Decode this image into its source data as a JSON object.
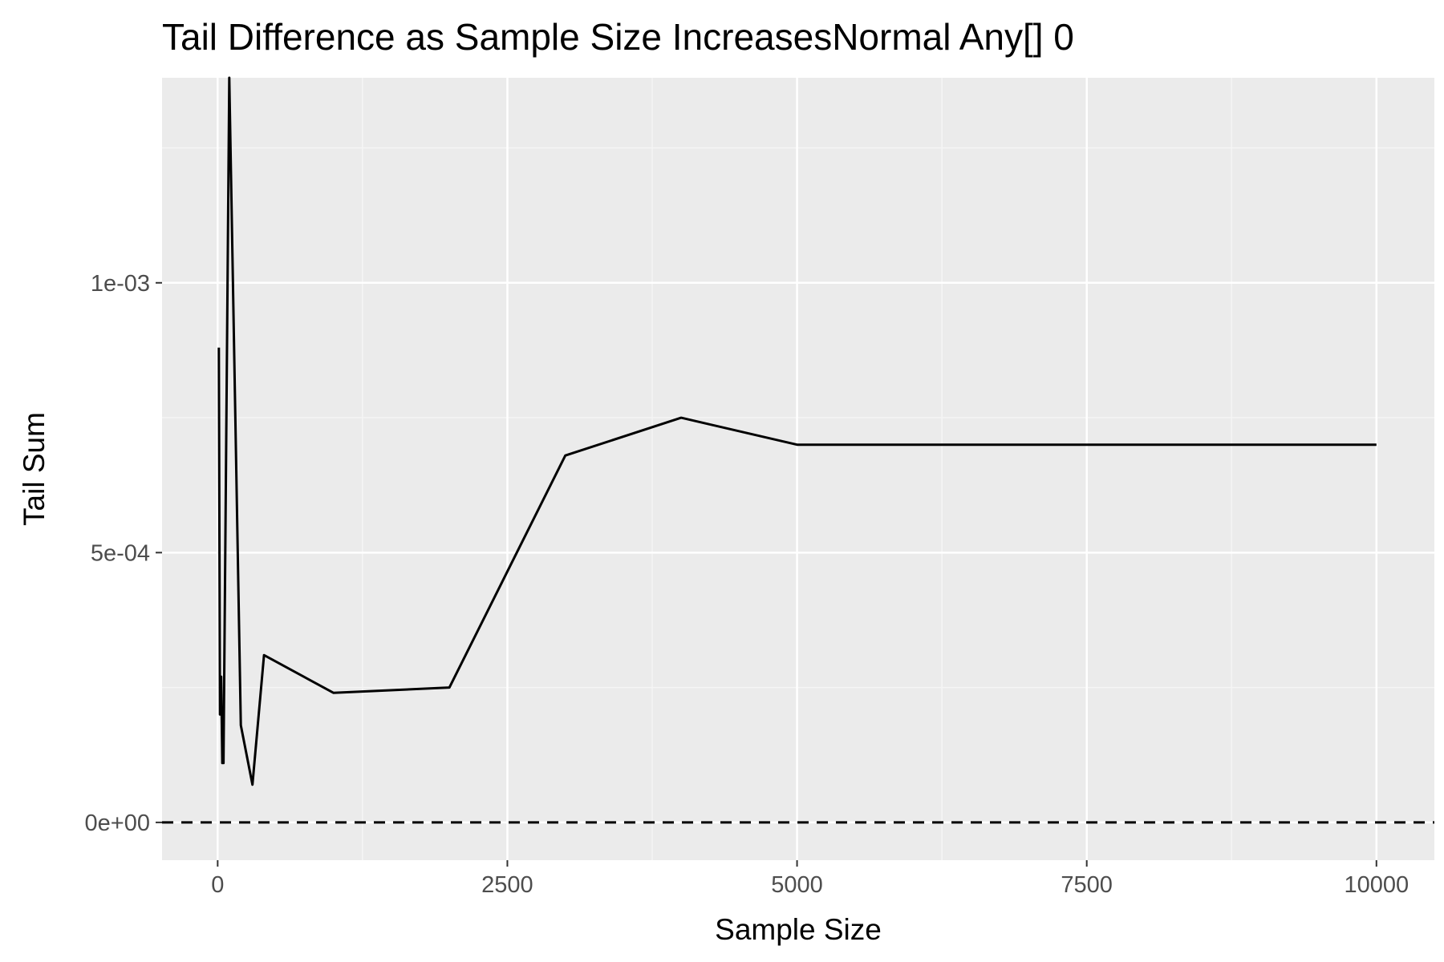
{
  "chart_data": {
    "type": "line",
    "title": "Tail Difference as Sample Size IncreasesNormal Any[] 0",
    "xlabel": "Sample Size",
    "ylabel": "Tail Sum",
    "xlim": [
      -480,
      10500
    ],
    "ylim": [
      -7e-05,
      0.00138
    ],
    "x_ticks": [
      0,
      2500,
      5000,
      7500,
      10000
    ],
    "x_tick_labels": [
      "0",
      "2500",
      "5000",
      "7500",
      "10000"
    ],
    "y_ticks": [
      0,
      0.0005,
      0.001
    ],
    "y_tick_labels": [
      "0e+00",
      "5e-04",
      "1e-03"
    ],
    "grid": true,
    "reference_line": {
      "y": 0,
      "style": "dashed"
    },
    "series": [
      {
        "x": [
          10,
          20,
          30,
          40,
          50,
          100,
          200,
          300,
          400,
          1000,
          2000,
          3000,
          4000,
          5000,
          10000
        ],
        "y": [
          0.00088,
          0.0002,
          0.00027,
          0.00011,
          0.00011,
          0.00138,
          0.00018,
          7e-05,
          0.00031,
          0.00024,
          0.00025,
          0.00068,
          0.00075,
          0.0007,
          0.0007
        ],
        "color": "#000000"
      }
    ]
  },
  "colors": {
    "panel": "#ebebeb",
    "grid_major": "#ffffff",
    "grid_minor": "#f5f5f5",
    "line": "#000000",
    "tick_label": "#4d4d4d"
  }
}
